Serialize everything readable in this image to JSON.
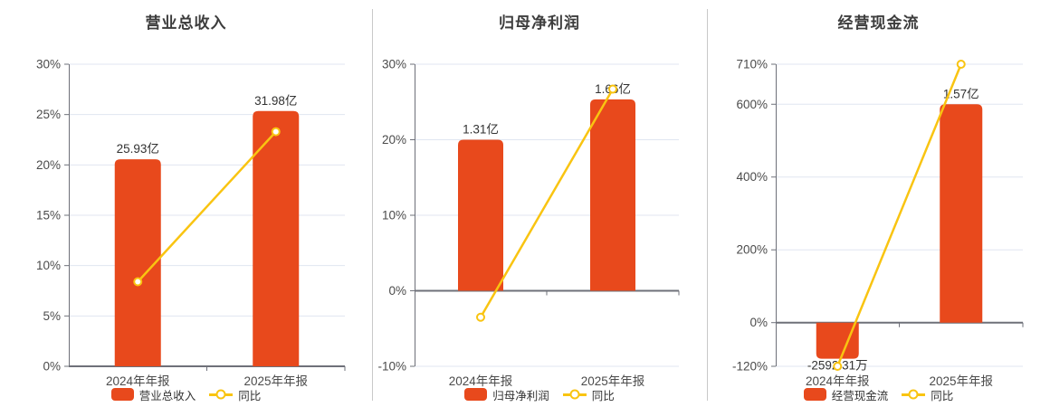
{
  "colors": {
    "bar": "#e8491c",
    "line": "#f9c411",
    "grid_line": "#e0e6f1",
    "axis_line": "#6e7079",
    "axis_label": "#4b4b4b",
    "value_label": "#333333",
    "title": "#3d3d3d",
    "divider": "#c9c9c9"
  },
  "chart_data": [
    {
      "type": "bar",
      "title": "营业总收入",
      "categories": [
        "2024年年报",
        "2025年年报"
      ],
      "bar_series": {
        "name": "营业总收入",
        "values": [
          25.93,
          31.98
        ],
        "labels": [
          "25.93亿",
          "31.98亿"
        ],
        "unit": "亿"
      },
      "line_series": {
        "name": "同比",
        "values_pct": [
          8.4,
          23.3
        ]
      },
      "y_ticks": [
        0,
        5,
        10,
        15,
        20,
        25,
        30
      ],
      "y_tick_labels": [
        "0%",
        "5%",
        "10%",
        "15%",
        "20%",
        "25%",
        "30%"
      ],
      "y_min": 0,
      "y_max": 30,
      "legend_position": "bottom",
      "grid": true
    },
    {
      "type": "bar",
      "title": "归母净利润",
      "categories": [
        "2024年年报",
        "2025年年报"
      ],
      "bar_series": {
        "name": "归母净利润",
        "values": [
          1.31,
          1.66
        ],
        "labels": [
          "1.31亿",
          "1.66亿"
        ],
        "unit": "亿"
      },
      "line_series": {
        "name": "同比",
        "values_pct": [
          -3.5,
          26.7
        ]
      },
      "y_ticks": [
        -10,
        0,
        10,
        20,
        30
      ],
      "y_tick_labels": [
        "-10%",
        "0%",
        "10%",
        "20%",
        "30%"
      ],
      "y_min": -10,
      "y_max": 30,
      "legend_position": "bottom",
      "grid": true
    },
    {
      "type": "bar",
      "title": "经营现金流",
      "categories": [
        "2024年年报",
        "2025年年报"
      ],
      "bar_series": {
        "name": "经营现金流",
        "values": [
          -0.259231,
          1.57
        ],
        "labels": [
          "-2592.31万",
          "1.57亿"
        ],
        "unit": "亿"
      },
      "line_series": {
        "name": "同比",
        "values_pct": [
          -120,
          710
        ]
      },
      "y_ticks": [
        -120,
        0,
        200,
        400,
        600,
        710
      ],
      "y_tick_labels": [
        "-120%",
        "0%",
        "200%",
        "400%",
        "600%",
        "710%"
      ],
      "y_min": -120,
      "y_max": 710,
      "legend_position": "bottom",
      "grid": true
    }
  ]
}
